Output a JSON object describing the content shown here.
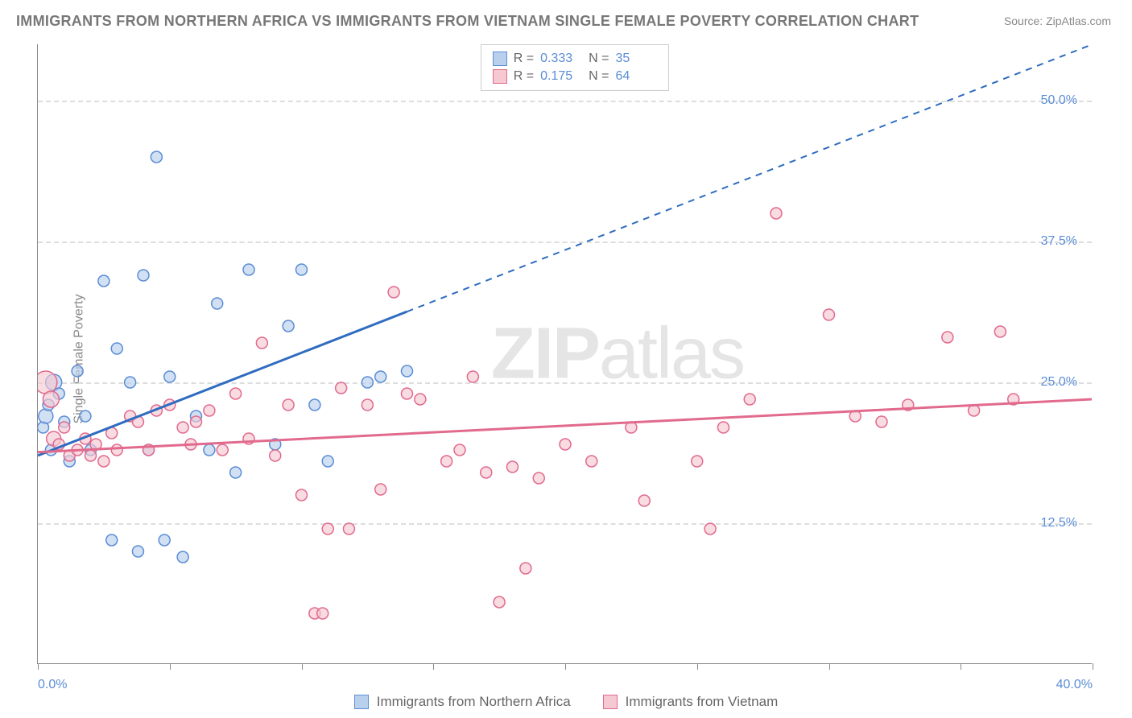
{
  "title": "IMMIGRANTS FROM NORTHERN AFRICA VS IMMIGRANTS FROM VIETNAM SINGLE FEMALE POVERTY CORRELATION CHART",
  "source": "Source: ZipAtlas.com",
  "watermark_a": "ZIP",
  "watermark_b": "atlas",
  "y_axis_label": "Single Female Poverty",
  "chart": {
    "type": "scatter",
    "xlim": [
      0,
      40
    ],
    "ylim": [
      0,
      55
    ],
    "x_ticks": [
      0,
      5,
      10,
      15,
      20,
      25,
      30,
      35,
      40
    ],
    "x_tick_labels": {
      "0": "0.0%",
      "40": "40.0%"
    },
    "y_ticks": [
      12.5,
      25.0,
      37.5,
      50.0
    ],
    "y_tick_labels": [
      "12.5%",
      "25.0%",
      "37.5%",
      "50.0%"
    ],
    "grid_color": "#dddddd",
    "background_color": "#ffffff",
    "series": [
      {
        "name": "Immigrants from Northern Africa",
        "label": "Immigrants from Northern Africa",
        "color_fill": "#b9d0ec",
        "color_stroke": "#5b8dd6",
        "trend_color": "#2f6cc0",
        "R": "0.333",
        "N": "35",
        "trend": {
          "x1": 0,
          "y1": 18.5,
          "x2": 40,
          "y2": 55,
          "solid_until_x": 14
        },
        "points": [
          {
            "x": 0.2,
            "y": 21,
            "r": 7
          },
          {
            "x": 0.3,
            "y": 22,
            "r": 9
          },
          {
            "x": 0.4,
            "y": 23,
            "r": 7
          },
          {
            "x": 0.5,
            "y": 19,
            "r": 7
          },
          {
            "x": 0.6,
            "y": 25,
            "r": 10
          },
          {
            "x": 0.8,
            "y": 24,
            "r": 7
          },
          {
            "x": 1.0,
            "y": 21.5,
            "r": 7
          },
          {
            "x": 1.2,
            "y": 18,
            "r": 7
          },
          {
            "x": 1.5,
            "y": 26,
            "r": 7
          },
          {
            "x": 1.8,
            "y": 22,
            "r": 7
          },
          {
            "x": 2.0,
            "y": 19,
            "r": 7
          },
          {
            "x": 2.5,
            "y": 34,
            "r": 7
          },
          {
            "x": 2.8,
            "y": 11,
            "r": 7
          },
          {
            "x": 3.0,
            "y": 28,
            "r": 7
          },
          {
            "x": 3.5,
            "y": 25,
            "r": 7
          },
          {
            "x": 3.8,
            "y": 10,
            "r": 7
          },
          {
            "x": 4.0,
            "y": 34.5,
            "r": 7
          },
          {
            "x": 4.2,
            "y": 19,
            "r": 7
          },
          {
            "x": 4.5,
            "y": 45,
            "r": 7
          },
          {
            "x": 4.8,
            "y": 11,
            "r": 7
          },
          {
            "x": 5.0,
            "y": 25.5,
            "r": 7
          },
          {
            "x": 5.5,
            "y": 9.5,
            "r": 7
          },
          {
            "x": 6.0,
            "y": 22,
            "r": 7
          },
          {
            "x": 6.5,
            "y": 19,
            "r": 7
          },
          {
            "x": 6.8,
            "y": 32,
            "r": 7
          },
          {
            "x": 7.5,
            "y": 17,
            "r": 7
          },
          {
            "x": 8.0,
            "y": 35,
            "r": 7
          },
          {
            "x": 9.0,
            "y": 19.5,
            "r": 7
          },
          {
            "x": 9.5,
            "y": 30,
            "r": 7
          },
          {
            "x": 10.0,
            "y": 35,
            "r": 7
          },
          {
            "x": 10.5,
            "y": 23,
            "r": 7
          },
          {
            "x": 11.0,
            "y": 18,
            "r": 7
          },
          {
            "x": 12.5,
            "y": 25,
            "r": 7
          },
          {
            "x": 13.0,
            "y": 25.5,
            "r": 7
          },
          {
            "x": 14.0,
            "y": 26,
            "r": 7
          }
        ]
      },
      {
        "name": "Immigrants from Vietnam",
        "label": "Immigrants from Vietnam",
        "color_fill": "#f6c8d2",
        "color_stroke": "#e16a8d",
        "trend_color": "#e16a8d",
        "R": "0.175",
        "N": "64",
        "trend": {
          "x1": 0,
          "y1": 18.8,
          "x2": 40,
          "y2": 23.5,
          "solid_until_x": 40
        },
        "points": [
          {
            "x": 0.3,
            "y": 25,
            "r": 14
          },
          {
            "x": 0.5,
            "y": 23.5,
            "r": 10
          },
          {
            "x": 0.6,
            "y": 20,
            "r": 9
          },
          {
            "x": 0.8,
            "y": 19.5,
            "r": 7
          },
          {
            "x": 1.0,
            "y": 21,
            "r": 7
          },
          {
            "x": 1.2,
            "y": 18.5,
            "r": 7
          },
          {
            "x": 1.5,
            "y": 19,
            "r": 7
          },
          {
            "x": 1.8,
            "y": 20,
            "r": 7
          },
          {
            "x": 2.0,
            "y": 18.5,
            "r": 7
          },
          {
            "x": 2.2,
            "y": 19.5,
            "r": 7
          },
          {
            "x": 2.5,
            "y": 18,
            "r": 7
          },
          {
            "x": 2.8,
            "y": 20.5,
            "r": 7
          },
          {
            "x": 3.0,
            "y": 19,
            "r": 7
          },
          {
            "x": 3.5,
            "y": 22,
            "r": 7
          },
          {
            "x": 3.8,
            "y": 21.5,
            "r": 7
          },
          {
            "x": 4.2,
            "y": 19,
            "r": 7
          },
          {
            "x": 4.5,
            "y": 22.5,
            "r": 7
          },
          {
            "x": 5.0,
            "y": 23,
            "r": 7
          },
          {
            "x": 5.5,
            "y": 21,
            "r": 7
          },
          {
            "x": 5.8,
            "y": 19.5,
            "r": 7
          },
          {
            "x": 6.0,
            "y": 21.5,
            "r": 7
          },
          {
            "x": 6.5,
            "y": 22.5,
            "r": 7
          },
          {
            "x": 7.0,
            "y": 19,
            "r": 7
          },
          {
            "x": 7.5,
            "y": 24,
            "r": 7
          },
          {
            "x": 8.0,
            "y": 20,
            "r": 7
          },
          {
            "x": 8.5,
            "y": 28.5,
            "r": 7
          },
          {
            "x": 9.0,
            "y": 18.5,
            "r": 7
          },
          {
            "x": 9.5,
            "y": 23,
            "r": 7
          },
          {
            "x": 10.0,
            "y": 15,
            "r": 7
          },
          {
            "x": 10.5,
            "y": 4.5,
            "r": 7
          },
          {
            "x": 10.8,
            "y": 4.5,
            "r": 7
          },
          {
            "x": 11.0,
            "y": 12,
            "r": 7
          },
          {
            "x": 11.5,
            "y": 24.5,
            "r": 7
          },
          {
            "x": 11.8,
            "y": 12,
            "r": 7
          },
          {
            "x": 12.5,
            "y": 23,
            "r": 7
          },
          {
            "x": 13.0,
            "y": 15.5,
            "r": 7
          },
          {
            "x": 13.5,
            "y": 33,
            "r": 7
          },
          {
            "x": 14.0,
            "y": 24,
            "r": 7
          },
          {
            "x": 14.5,
            "y": 23.5,
            "r": 7
          },
          {
            "x": 15.5,
            "y": 18,
            "r": 7
          },
          {
            "x": 16.0,
            "y": 19,
            "r": 7
          },
          {
            "x": 16.5,
            "y": 25.5,
            "r": 7
          },
          {
            "x": 17.0,
            "y": 17,
            "r": 7
          },
          {
            "x": 17.5,
            "y": 5.5,
            "r": 7
          },
          {
            "x": 18.0,
            "y": 17.5,
            "r": 7
          },
          {
            "x": 18.5,
            "y": 8.5,
            "r": 7
          },
          {
            "x": 19.0,
            "y": 16.5,
            "r": 7
          },
          {
            "x": 20.0,
            "y": 19.5,
            "r": 7
          },
          {
            "x": 21.0,
            "y": 18,
            "r": 7
          },
          {
            "x": 22.5,
            "y": 21,
            "r": 7
          },
          {
            "x": 23.0,
            "y": 14.5,
            "r": 7
          },
          {
            "x": 25.0,
            "y": 18,
            "r": 7
          },
          {
            "x": 25.5,
            "y": 12,
            "r": 7
          },
          {
            "x": 26.0,
            "y": 21,
            "r": 7
          },
          {
            "x": 27.0,
            "y": 23.5,
            "r": 7
          },
          {
            "x": 28.0,
            "y": 40,
            "r": 7
          },
          {
            "x": 30.0,
            "y": 31,
            "r": 7
          },
          {
            "x": 31.0,
            "y": 22,
            "r": 7
          },
          {
            "x": 32.0,
            "y": 21.5,
            "r": 7
          },
          {
            "x": 33.0,
            "y": 23,
            "r": 7
          },
          {
            "x": 34.5,
            "y": 29,
            "r": 7
          },
          {
            "x": 35.5,
            "y": 22.5,
            "r": 7
          },
          {
            "x": 36.5,
            "y": 29.5,
            "r": 7
          },
          {
            "x": 37.0,
            "y": 23.5,
            "r": 7
          }
        ]
      }
    ],
    "legend_stats": {
      "r_label": "R =",
      "n_label": "N ="
    }
  }
}
